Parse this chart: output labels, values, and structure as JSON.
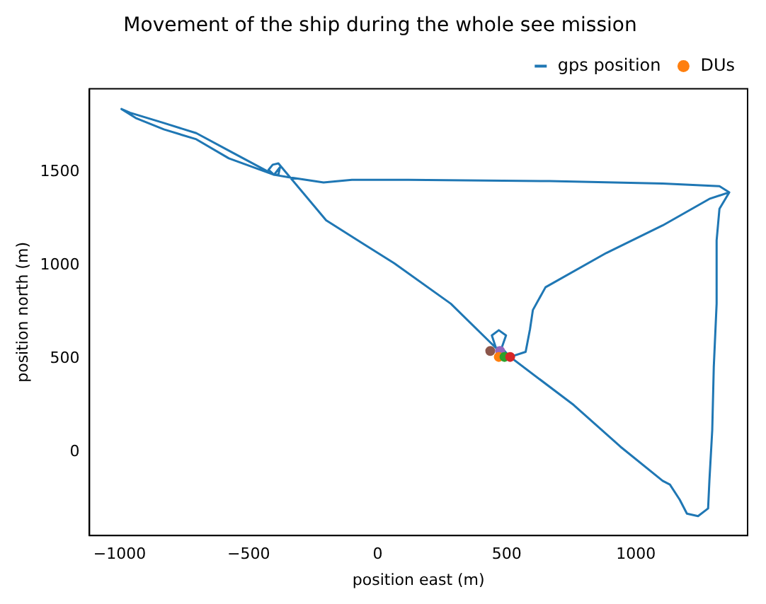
{
  "chart_data": {
    "type": "line",
    "title": "Movement of the ship during the whole see mission",
    "xlabel": "position east (m)",
    "ylabel": "position north (m)",
    "xlim": [
      -1117,
      1433
    ],
    "ylim": [
      -447,
      1944
    ],
    "xticks": [
      -1000,
      -500,
      0,
      500,
      1000
    ],
    "yticks": [
      0,
      500,
      1000,
      1500
    ],
    "grid": false,
    "legend": "top right",
    "series": [
      {
        "name": "gps position",
        "type": "line",
        "color": "#1f77b4",
        "marker": "none",
        "line_style": "solid",
        "x": [
          513,
          480,
          458,
          442,
          469,
          497,
          480,
          458,
          283,
          64,
          -200,
          -385,
          -407,
          -423,
          -402,
          -385,
          -379,
          -402,
          -429,
          -566,
          -703,
          -829,
          -960,
          -993,
          -938,
          -829,
          -703,
          -577,
          -402,
          -347,
          -210,
          -100,
          118,
          666,
          1104,
          1324,
          1362,
          1324,
          1313,
          1313,
          1302,
          1296,
          1285,
          1280,
          1241,
          1198,
          1170,
          1132,
          1104,
          940,
          759,
          513,
          573,
          590,
          601,
          650,
          885,
          1104,
          1285,
          1362
        ],
        "values": [
          509,
          557,
          557,
          624,
          652,
          624,
          557,
          557,
          794,
          1010,
          1240,
          1545,
          1538,
          1511,
          1484,
          1484,
          1524,
          1484,
          1504,
          1605,
          1707,
          1761,
          1816,
          1836,
          1788,
          1727,
          1674,
          1572,
          1484,
          1471,
          1443,
          1457,
          1457,
          1450,
          1437,
          1423,
          1390,
          1302,
          1133,
          794,
          455,
          117,
          -154,
          -302,
          -343,
          -330,
          -255,
          -174,
          -154,
          29,
          252,
          509,
          536,
          658,
          760,
          882,
          1065,
          1213,
          1355,
          1390
        ]
      },
      {
        "name": "DUs",
        "type": "scatter",
        "color": "#ff7f0e",
        "marker": "circle",
        "colors": [
          "#8c564b",
          "#9467bd",
          "#ff7f0e",
          "#2ca02c",
          "#d62728"
        ],
        "x": [
          436,
          474,
          469,
          491,
          513
        ],
        "values": [
          541,
          541,
          509,
          509,
          509
        ]
      }
    ]
  }
}
